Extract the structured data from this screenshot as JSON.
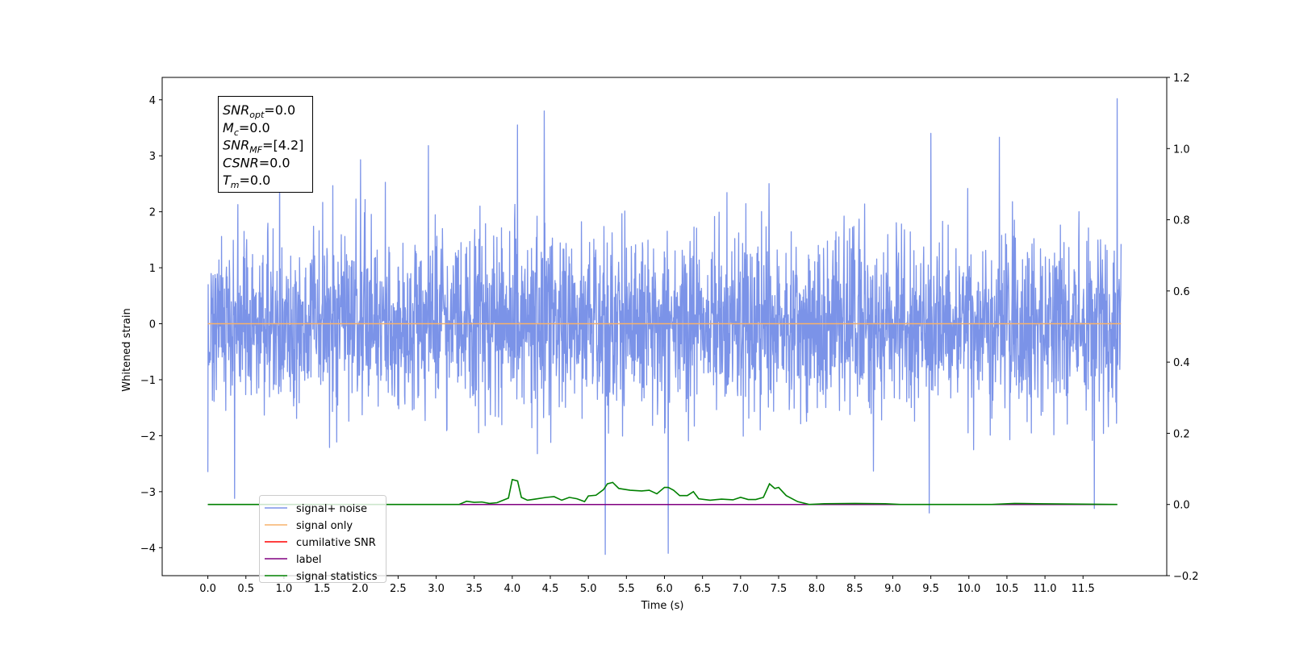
{
  "chart_data": {
    "type": "line",
    "xlabel": "Time (s)",
    "ylabel": "Whitened strain",
    "xlim": [
      -0.6,
      12.6
    ],
    "ylim": [
      -4.5,
      4.4
    ],
    "y2lim": [
      -0.2,
      1.2
    ],
    "x_ticks": [
      0.0,
      0.5,
      1.0,
      1.5,
      2.0,
      2.5,
      3.0,
      3.5,
      4.0,
      4.5,
      5.0,
      5.5,
      6.0,
      6.5,
      7.0,
      7.5,
      8.0,
      8.5,
      9.0,
      9.5,
      10.0,
      10.5,
      11.0,
      11.5
    ],
    "x_tick_labels": [
      "0.0",
      "0.5",
      "1.0",
      "1.5",
      "2.0",
      "2.5",
      "3.0",
      "3.5",
      "4.0",
      "4.5",
      "5.0",
      "5.5",
      "6.0",
      "6.5",
      "7.0",
      "7.5",
      "8.0",
      "8.5",
      "9.0",
      "9.5",
      "10.0",
      "10.5",
      "11.0",
      "11.5"
    ],
    "y_ticks": [
      -4,
      -3,
      -2,
      -1,
      0,
      1,
      2,
      3,
      4
    ],
    "y_tick_labels": [
      "−4",
      "−3",
      "−2",
      "−1",
      "0",
      "1",
      "2",
      "3",
      "4"
    ],
    "y2_ticks": [
      -0.2,
      0.0,
      0.2,
      0.4,
      0.6,
      0.8,
      1.0,
      1.2
    ],
    "y2_tick_labels": [
      "−0.2",
      "0.0",
      "0.2",
      "0.4",
      "0.6",
      "0.8",
      "1.0",
      "1.2"
    ],
    "grid": false,
    "legend_location": "lower-left",
    "info_box_location": "top-left",
    "info_lines": [
      {
        "base": "SNR",
        "sub": "opt",
        "value": "=0.0"
      },
      {
        "base": "M",
        "sub": "c",
        "value": "=0.0"
      },
      {
        "base": "SNR",
        "sub": "MF",
        "value": "=[4.2]"
      },
      {
        "base": "CSNR",
        "sub": "",
        "value": "=0.0"
      },
      {
        "base": "T",
        "sub": "m",
        "value": "=0.0"
      }
    ],
    "series": [
      {
        "name": "signal+ noise",
        "color": "#7b93e8",
        "axis": "left",
        "noise_std": 0.8,
        "x_range": [
          0.0,
          12.0
        ],
        "spikes": [
          {
            "x": 4.07,
            "y": 3.55
          },
          {
            "x": 4.42,
            "y": 3.8
          },
          {
            "x": 11.95,
            "y": 4.02
          },
          {
            "x": 5.22,
            "y": -4.12
          },
          {
            "x": 6.05,
            "y": -4.1
          },
          {
            "x": 9.48,
            "y": -3.38
          },
          {
            "x": 9.5,
            "y": 3.4
          },
          {
            "x": 0.0,
            "y": -2.65
          },
          {
            "x": 0.35,
            "y": -3.12
          },
          {
            "x": 11.65,
            "y": -3.3
          },
          {
            "x": 2.9,
            "y": 3.18
          },
          {
            "x": 10.4,
            "y": 3.33
          }
        ]
      },
      {
        "name": "signal only",
        "color": "#f7b26b",
        "axis": "left",
        "x": [
          0.0,
          12.0
        ],
        "y": [
          0.0,
          0.0
        ]
      },
      {
        "name": "cumilative SNR",
        "color": "#ff0000",
        "axis": "right",
        "x": [],
        "y": []
      },
      {
        "name": "label",
        "color": "#800080",
        "axis": "right",
        "x": [
          0.0,
          11.95
        ],
        "y": [
          0.0,
          0.0
        ]
      },
      {
        "name": "signal statistics",
        "color": "#008000",
        "axis": "right",
        "x": [
          0.0,
          3.3,
          3.4,
          3.5,
          3.6,
          3.7,
          3.8,
          3.95,
          4.0,
          4.07,
          4.12,
          4.2,
          4.3,
          4.45,
          4.55,
          4.65,
          4.75,
          4.85,
          4.95,
          5.0,
          5.1,
          5.2,
          5.25,
          5.32,
          5.4,
          5.55,
          5.7,
          5.8,
          5.9,
          6.0,
          6.05,
          6.12,
          6.2,
          6.3,
          6.38,
          6.45,
          6.6,
          6.75,
          6.9,
          7.0,
          7.1,
          7.2,
          7.3,
          7.38,
          7.45,
          7.5,
          7.6,
          7.75,
          7.9,
          8.1,
          8.5,
          8.9,
          9.1,
          10.3,
          10.6,
          10.9,
          11.95
        ],
        "y": [
          0.0,
          0.0,
          0.009,
          0.006,
          0.007,
          0.003,
          0.005,
          0.018,
          0.07,
          0.066,
          0.02,
          0.012,
          0.015,
          0.02,
          0.022,
          0.012,
          0.02,
          0.016,
          0.008,
          0.024,
          0.026,
          0.042,
          0.058,
          0.062,
          0.045,
          0.04,
          0.038,
          0.04,
          0.03,
          0.048,
          0.048,
          0.04,
          0.025,
          0.025,
          0.036,
          0.016,
          0.012,
          0.015,
          0.013,
          0.02,
          0.014,
          0.014,
          0.02,
          0.058,
          0.045,
          0.048,
          0.025,
          0.008,
          0.0,
          0.002,
          0.003,
          0.002,
          0.0,
          0.0,
          0.003,
          0.002,
          0.0
        ]
      }
    ]
  }
}
